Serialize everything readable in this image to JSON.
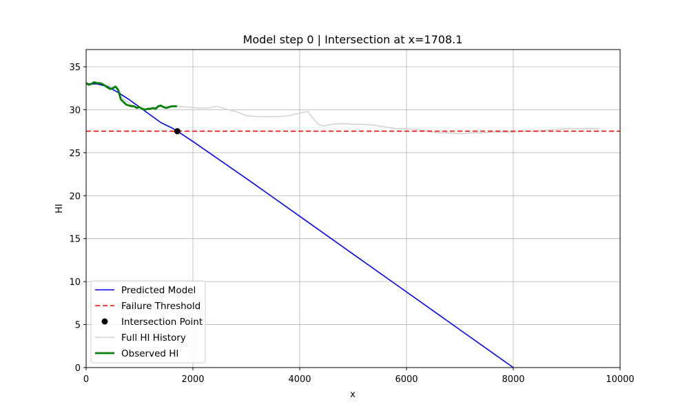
{
  "chart_data": {
    "type": "line",
    "title": "Model step 0 | Intersection at x=1708.1",
    "xlabel": "x",
    "ylabel": "HI",
    "xlim": [
      0,
      10000
    ],
    "ylim": [
      0,
      37
    ],
    "xticks": [
      0,
      2000,
      4000,
      6000,
      8000,
      10000
    ],
    "yticks": [
      0,
      5,
      10,
      15,
      20,
      25,
      30,
      35
    ],
    "grid": true,
    "legend_position": "lower-left",
    "series": [
      {
        "name": "Predicted Model",
        "style": "solid",
        "color": "#0000ff",
        "x": [
          0,
          200,
          400,
          600,
          800,
          1000,
          1200,
          1400,
          1600,
          1708,
          2000,
          3000,
          4000,
          5000,
          6000,
          7000,
          8000
        ],
        "y": [
          33.0,
          33.0,
          32.7,
          32.0,
          31.2,
          30.3,
          29.4,
          28.5,
          27.9,
          27.5,
          26.3,
          22.0,
          17.6,
          13.2,
          8.8,
          4.4,
          0.0
        ]
      },
      {
        "name": "Failure Threshold",
        "style": "dashed",
        "color": "#ff0000",
        "x": [
          0,
          10000
        ],
        "y": [
          27.5,
          27.5
        ]
      },
      {
        "name": "Intersection Point",
        "style": "marker",
        "color": "#000000",
        "x": [
          1708.1
        ],
        "y": [
          27.5
        ]
      },
      {
        "name": "Full HI History",
        "style": "solid",
        "color": "#d3d3d3",
        "x": [
          0,
          200,
          400,
          600,
          700,
          900,
          1100,
          1300,
          1500,
          1700,
          1900,
          2100,
          2300,
          2450,
          2600,
          2800,
          3000,
          3200,
          3400,
          3600,
          3800,
          4000,
          4150,
          4250,
          4350,
          4450,
          4600,
          4800,
          5000,
          5200,
          5400,
          5600,
          5800,
          6000,
          6200,
          6400,
          6600,
          6800,
          7000,
          7200,
          7400,
          7600,
          7800,
          8000,
          8200,
          8400,
          8600,
          8800,
          9000,
          9200,
          9400,
          9600
        ],
        "y": [
          33.1,
          33.1,
          32.8,
          32.5,
          31.2,
          30.4,
          30.1,
          30.3,
          30.4,
          30.4,
          30.3,
          30.2,
          30.2,
          30.4,
          30.1,
          29.8,
          29.3,
          29.2,
          29.2,
          29.2,
          29.3,
          29.6,
          29.8,
          29.0,
          28.3,
          28.1,
          28.3,
          28.4,
          28.3,
          28.3,
          28.2,
          28.0,
          27.8,
          27.8,
          27.7,
          27.5,
          27.3,
          27.3,
          27.2,
          27.3,
          27.3,
          27.4,
          27.4,
          27.4,
          27.5,
          27.5,
          27.6,
          27.7,
          27.8,
          27.8,
          27.8,
          27.8
        ]
      },
      {
        "name": "Observed HI",
        "style": "solid-thick",
        "color": "#008000",
        "x": [
          0,
          50,
          100,
          150,
          200,
          250,
          300,
          350,
          400,
          450,
          500,
          550,
          600,
          650,
          700,
          750,
          800,
          850,
          900,
          950,
          1000,
          1050,
          1100,
          1150,
          1200,
          1250,
          1300,
          1350,
          1400,
          1450,
          1500,
          1550,
          1600,
          1650,
          1700
        ],
        "y": [
          33.1,
          32.9,
          33.0,
          33.2,
          33.1,
          33.1,
          33.0,
          32.8,
          32.6,
          32.4,
          32.5,
          32.7,
          32.3,
          31.2,
          30.9,
          30.6,
          30.5,
          30.4,
          30.4,
          30.2,
          30.3,
          30.1,
          30.0,
          30.1,
          30.1,
          30.2,
          30.1,
          30.4,
          30.5,
          30.3,
          30.2,
          30.3,
          30.4,
          30.4,
          30.4
        ]
      }
    ]
  }
}
